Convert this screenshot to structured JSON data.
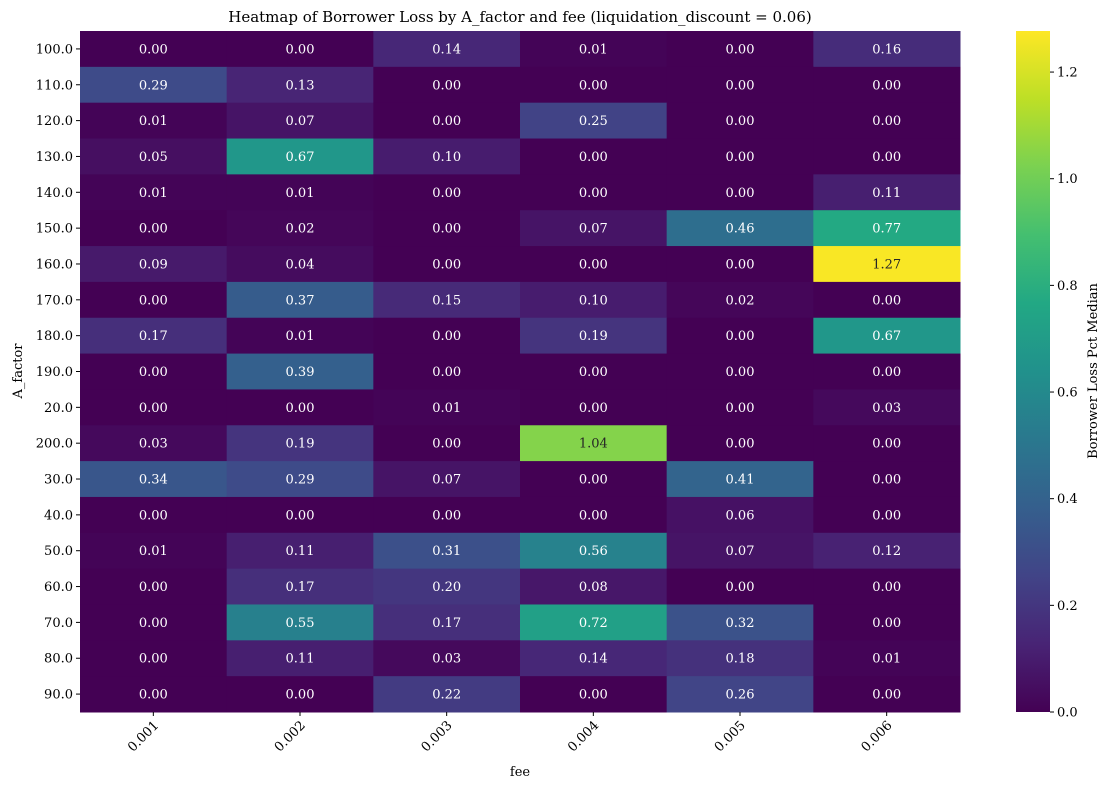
{
  "chart_data": {
    "type": "heatmap",
    "title": "Heatmap of Borrower Loss by A_factor and fee (liquidation_discount = 0.06)",
    "xlabel": "fee",
    "ylabel": "A_factor",
    "x_categories": [
      "0.001",
      "0.002",
      "0.003",
      "0.004",
      "0.005",
      "0.006"
    ],
    "y_categories": [
      "100.0",
      "110.0",
      "120.0",
      "130.0",
      "140.0",
      "150.0",
      "160.0",
      "170.0",
      "180.0",
      "190.0",
      "20.0",
      "200.0",
      "30.0",
      "40.0",
      "50.0",
      "60.0",
      "70.0",
      "80.0",
      "90.0"
    ],
    "values": [
      [
        0.0,
        0.0,
        0.14,
        0.01,
        0.0,
        0.16
      ],
      [
        0.29,
        0.13,
        0.0,
        0.0,
        0.0,
        0.0
      ],
      [
        0.01,
        0.07,
        0.0,
        0.25,
        0.0,
        0.0
      ],
      [
        0.05,
        0.67,
        0.1,
        0.0,
        0.0,
        0.0
      ],
      [
        0.01,
        0.01,
        0.0,
        0.0,
        0.0,
        0.11
      ],
      [
        0.0,
        0.02,
        0.0,
        0.07,
        0.46,
        0.77
      ],
      [
        0.09,
        0.04,
        0.0,
        0.0,
        0.0,
        1.27
      ],
      [
        0.0,
        0.37,
        0.15,
        0.1,
        0.02,
        0.0
      ],
      [
        0.17,
        0.01,
        0.0,
        0.19,
        0.0,
        0.67
      ],
      [
        0.0,
        0.39,
        0.0,
        0.0,
        0.0,
        0.0
      ],
      [
        0.0,
        0.0,
        0.01,
        0.0,
        0.0,
        0.03
      ],
      [
        0.03,
        0.19,
        0.0,
        1.04,
        0.0,
        0.0
      ],
      [
        0.34,
        0.29,
        0.07,
        0.0,
        0.41,
        0.0
      ],
      [
        0.0,
        0.0,
        0.0,
        0.0,
        0.06,
        0.0
      ],
      [
        0.01,
        0.11,
        0.31,
        0.56,
        0.07,
        0.12
      ],
      [
        0.0,
        0.17,
        0.2,
        0.08,
        0.0,
        0.0
      ],
      [
        0.0,
        0.55,
        0.17,
        0.72,
        0.32,
        0.0
      ],
      [
        0.0,
        0.11,
        0.03,
        0.14,
        0.18,
        0.01
      ],
      [
        0.0,
        0.0,
        0.22,
        0.0,
        0.26,
        0.0
      ]
    ],
    "colormap": "viridis",
    "value_format": "0.00",
    "colorbar": {
      "label": "Borrower Loss Pct Median",
      "range": [
        0.0,
        1.277
      ],
      "ticks": [
        0.0,
        0.2,
        0.4,
        0.6,
        0.8,
        1.0,
        1.2
      ],
      "tick_labels": [
        "0.0",
        "0.2",
        "0.4",
        "0.6",
        "0.8",
        "1.0",
        "1.2"
      ]
    },
    "grid": false,
    "legend": "colorbar-right"
  }
}
